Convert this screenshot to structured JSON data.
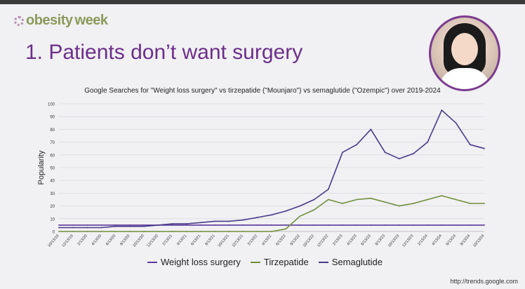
{
  "header": {
    "logo_text_a": "obesity",
    "logo_text_b": "week",
    "slide_title": "1. Patients don’t want surgery"
  },
  "source": "http://trends.google.com",
  "colors": {
    "weight_loss_surgery": "#5a3a9a",
    "tirzepatide": "#6f8f3a",
    "semaglutide": "#4a3a8a",
    "accent": "#6b2f8a"
  },
  "chart_data": {
    "type": "line",
    "title": "Google Searches for \"Weight loss surgery\" vs tirzepatide (\"Mounjaro\") vs semaglutide (\"Ozempic\") over 2019-2024",
    "xlabel": "",
    "ylabel": "Popularity",
    "ylim": [
      0,
      100
    ],
    "yticks": [
      0,
      10,
      20,
      30,
      40,
      50,
      60,
      70,
      80,
      90,
      100
    ],
    "grid": true,
    "legend_position": "bottom",
    "x": [
      "10/13/19",
      "12/13/19",
      "2/13/20",
      "4/13/20",
      "6/13/20",
      "8/13/20",
      "10/13/20",
      "12/13/20",
      "2/13/21",
      "4/13/21",
      "6/13/21",
      "8/13/21",
      "10/13/21",
      "12/13/21",
      "2/13/22",
      "4/13/22",
      "6/13/22",
      "8/13/22",
      "10/13/22",
      "12/13/22",
      "2/13/23",
      "4/13/23",
      "6/13/23",
      "8/13/23",
      "10/13/23",
      "12/13/23",
      "2/13/24",
      "4/13/24",
      "6/13/24",
      "8/13/24",
      "10/13/24"
    ],
    "series": [
      {
        "name": "Weight loss surgery",
        "values": [
          5,
          5,
          5,
          5,
          5,
          5,
          5,
          5,
          5,
          5,
          5,
          5,
          5,
          5,
          5,
          5,
          5,
          5,
          5,
          5,
          5,
          5,
          5,
          5,
          5,
          5,
          5,
          5,
          5,
          5,
          5
        ]
      },
      {
        "name": "Tirzepatide",
        "values": [
          0,
          0,
          0,
          0,
          0,
          0,
          0,
          0,
          0,
          0,
          0,
          0,
          0,
          0,
          0,
          0,
          2,
          12,
          17,
          25,
          22,
          25,
          26,
          23,
          20,
          22,
          25,
          28,
          25,
          22,
          22
        ]
      },
      {
        "name": "Semaglutide",
        "values": [
          3,
          3,
          3,
          3,
          4,
          4,
          4,
          5,
          6,
          6,
          7,
          8,
          8,
          9,
          11,
          13,
          16,
          20,
          25,
          33,
          62,
          68,
          80,
          62,
          57,
          61,
          70,
          95,
          85,
          68,
          65
        ]
      }
    ]
  }
}
